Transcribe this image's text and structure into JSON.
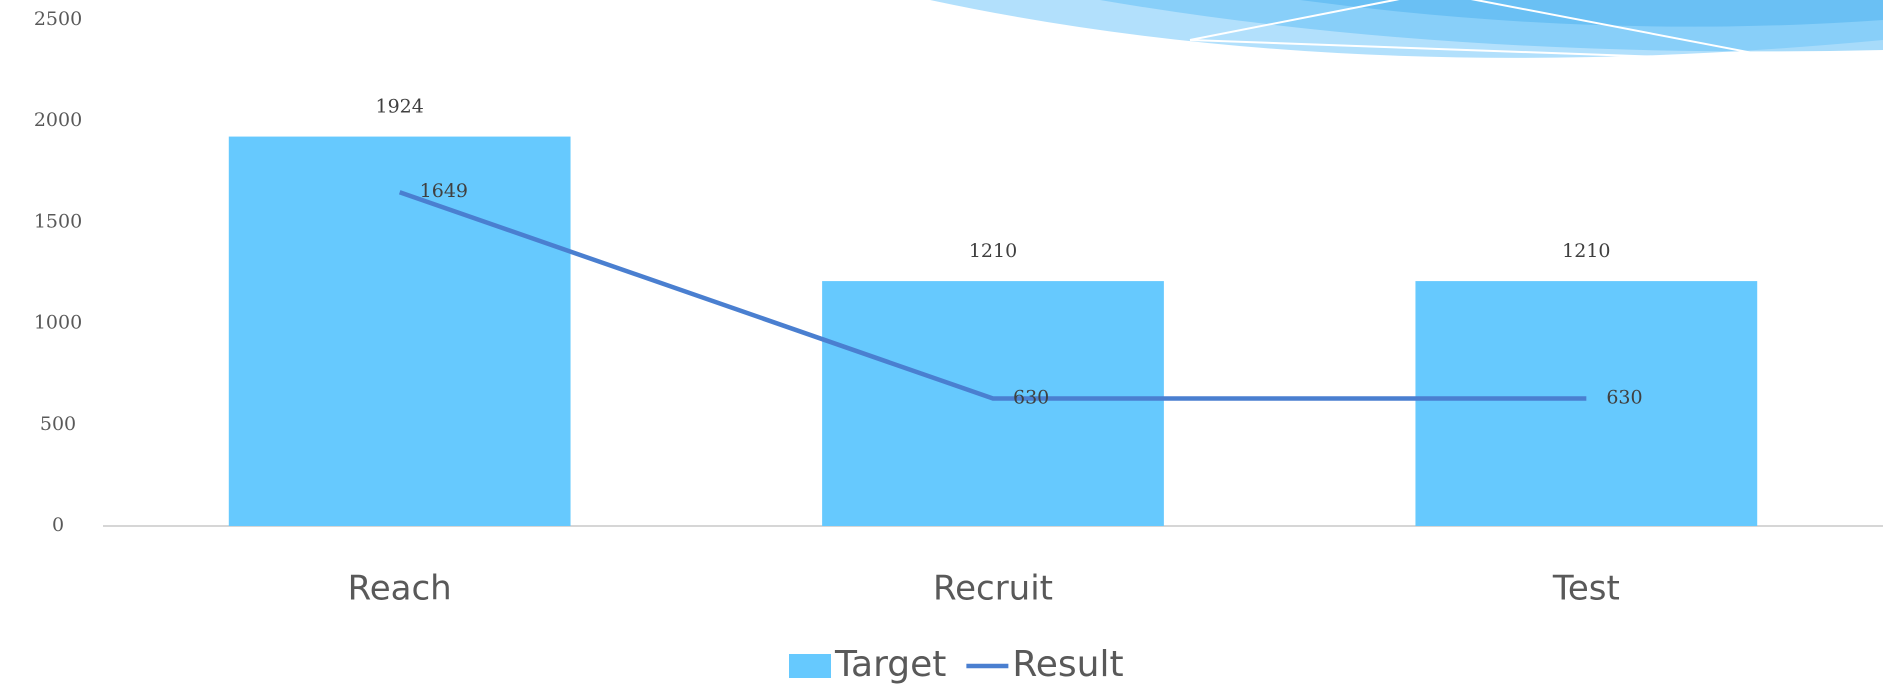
{
  "chart_data": {
    "type": "bar",
    "categories": [
      "Reach",
      "Recruit",
      "Test"
    ],
    "series": [
      {
        "name": "Target",
        "type": "bar",
        "color": "#66c9fe",
        "values": [
          1924,
          1210,
          1210
        ]
      },
      {
        "name": "Result",
        "type": "line",
        "color": "#4a7fd0",
        "values": [
          1649,
          630,
          630
        ]
      }
    ],
    "ylim": [
      0,
      2500
    ],
    "yticks": [
      0,
      500,
      1000,
      1500,
      2000,
      2500
    ],
    "grid": false,
    "data_labels": true,
    "legend": "bottom"
  }
}
